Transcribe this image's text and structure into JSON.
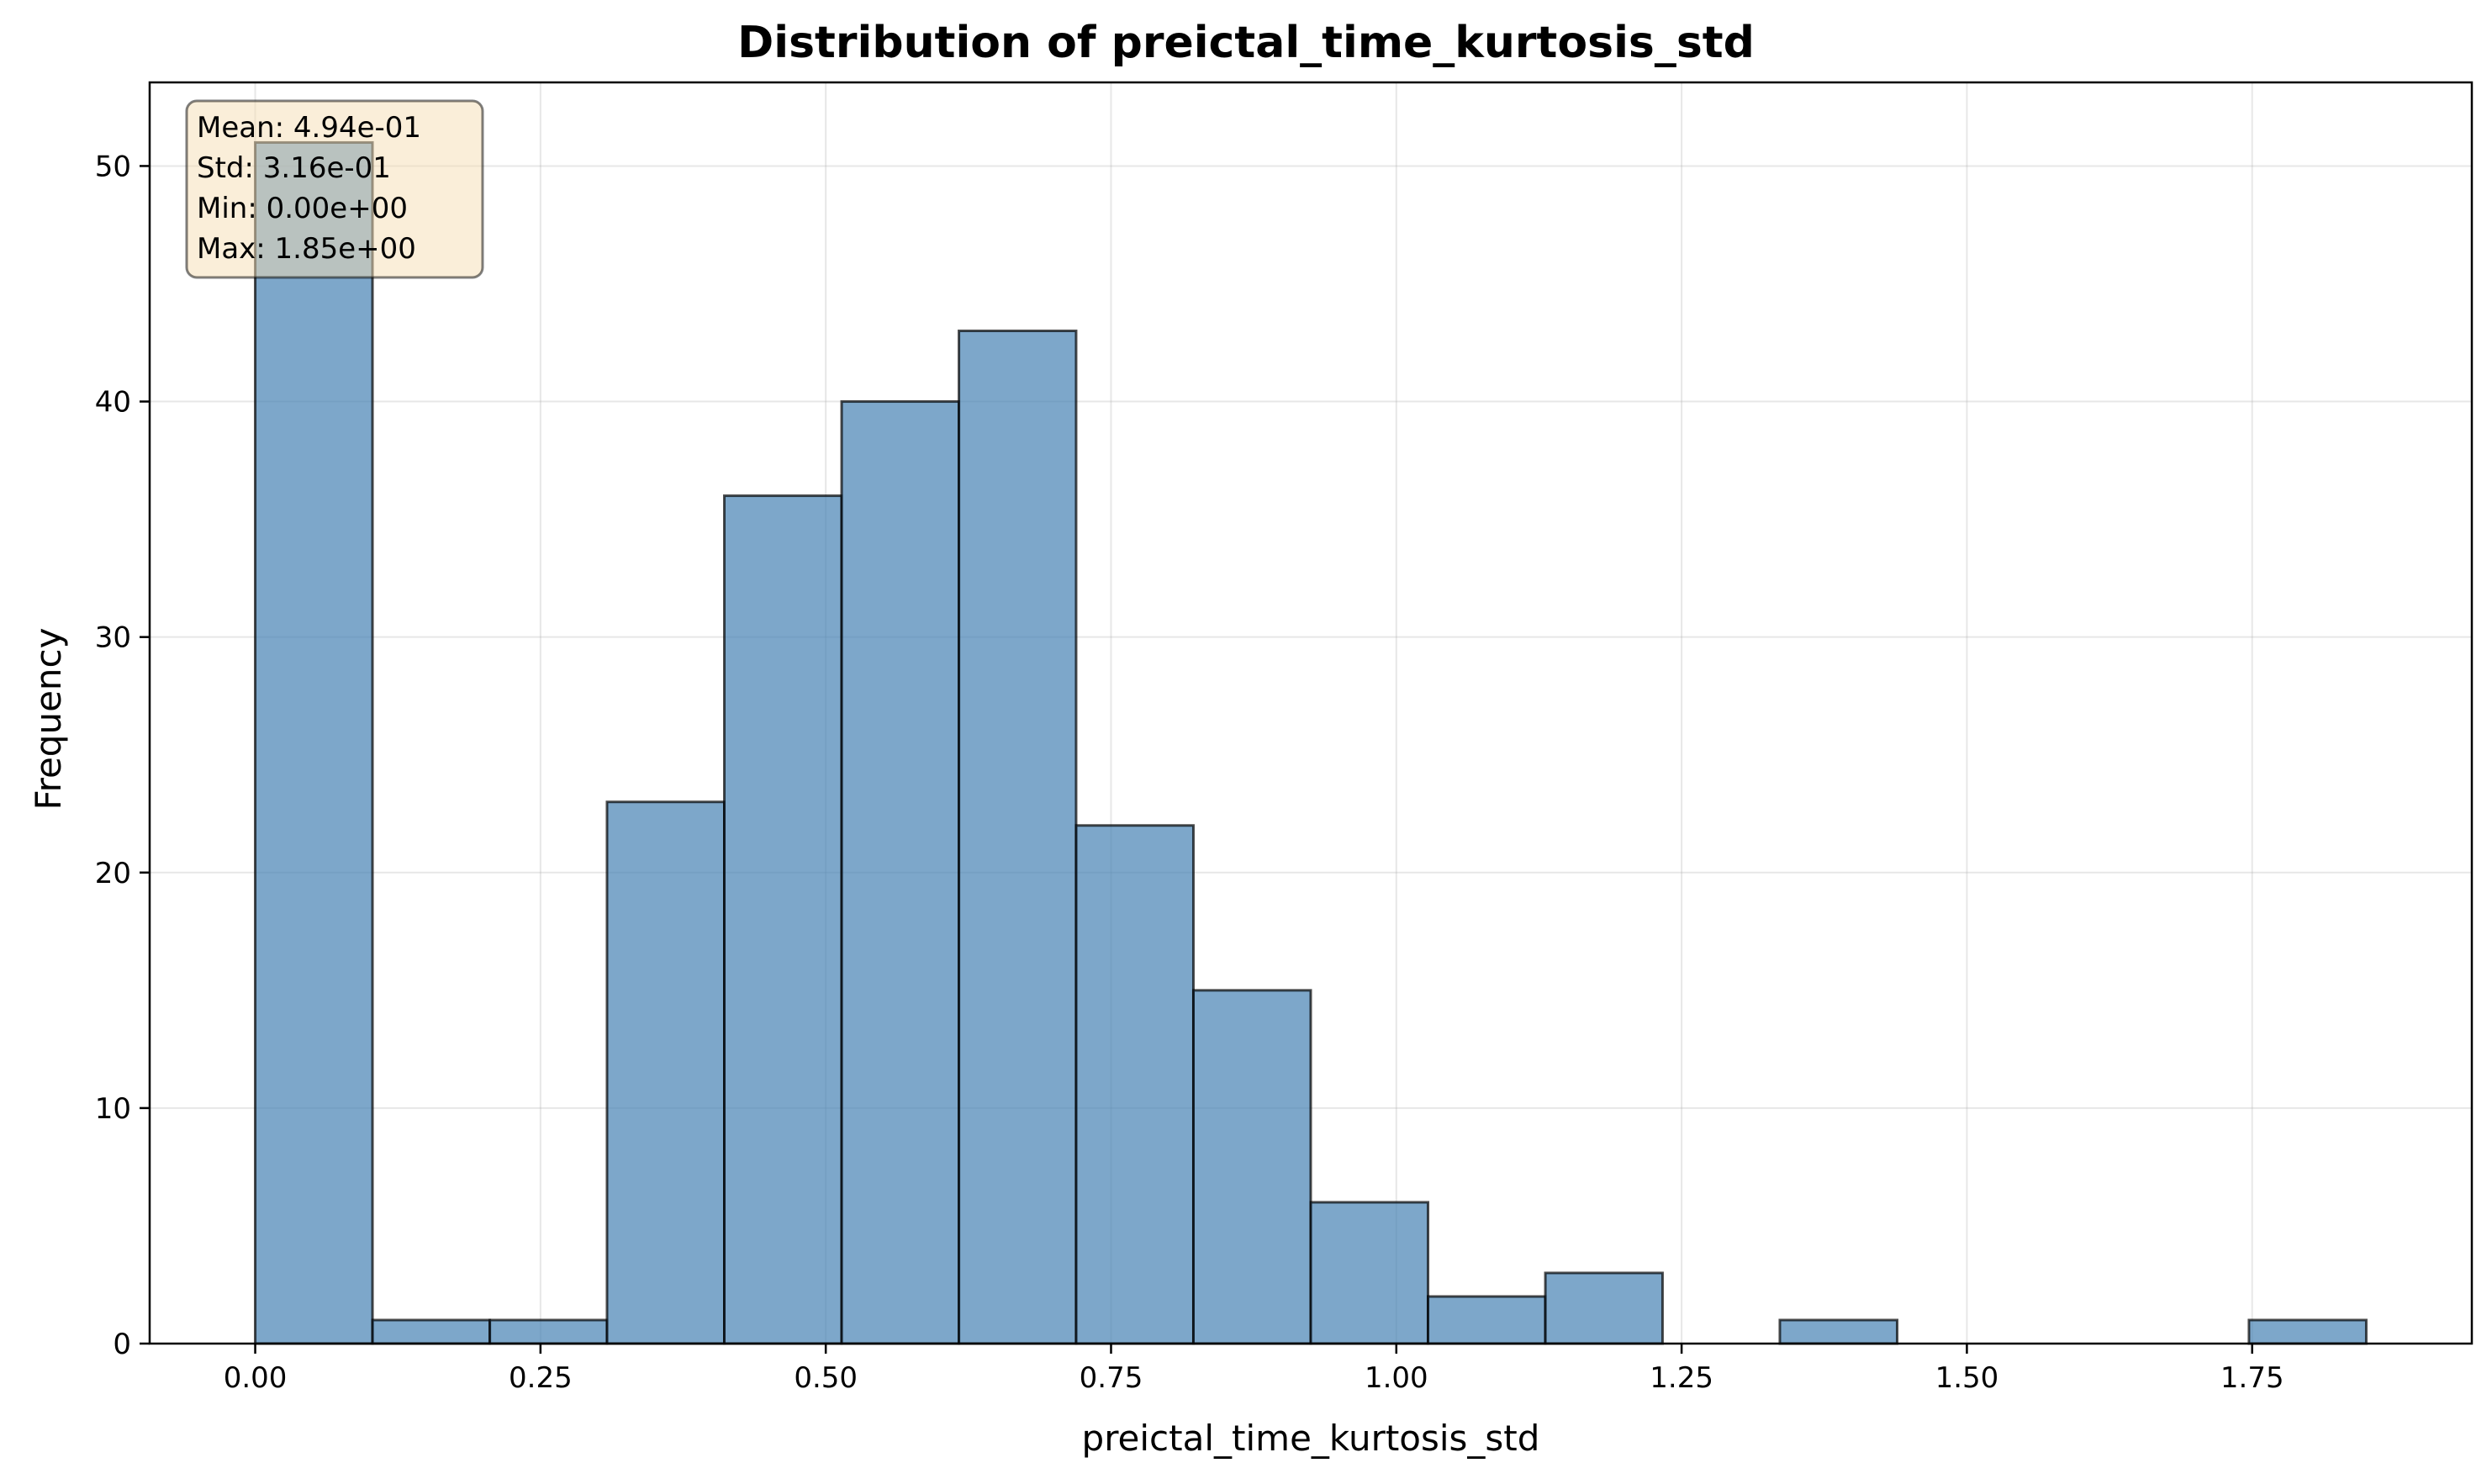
{
  "chart_data": {
    "type": "bar",
    "title": "Distribution of preictal_time_kurtosis_std",
    "xlabel": "preictal_time_kurtosis_std",
    "ylabel": "Frequency",
    "xlim": [
      -0.0925,
      1.9425
    ],
    "ylim": [
      0,
      53.55
    ],
    "x_ticks": [
      0.0,
      0.25,
      0.5,
      0.75,
      1.0,
      1.25,
      1.5,
      1.75
    ],
    "x_tick_labels": [
      "0.00",
      "0.25",
      "0.50",
      "0.75",
      "1.00",
      "1.25",
      "1.50",
      "1.75"
    ],
    "y_ticks": [
      0,
      10,
      20,
      30,
      40,
      50
    ],
    "y_tick_labels": [
      "0",
      "10",
      "20",
      "30",
      "40",
      "50"
    ],
    "grid": true,
    "bin_edges": [
      0.0,
      0.1028,
      0.2056,
      0.3083,
      0.4111,
      0.5139,
      0.6167,
      0.7194,
      0.8222,
      0.925,
      1.0278,
      1.1306,
      1.2333,
      1.3361,
      1.4389,
      1.5417,
      1.6444,
      1.7472,
      1.85
    ],
    "values": [
      51,
      1,
      1,
      23,
      36,
      40,
      43,
      22,
      15,
      6,
      2,
      3,
      0,
      1,
      0,
      0,
      0,
      1
    ],
    "bar_color": "#4682b4",
    "edge_color": "#000000",
    "stats_box": {
      "lines": [
        "Mean: 4.94e-01",
        "Std: 3.16e-01",
        "Min: 0.00e+00",
        "Max: 1.85e+00"
      ],
      "background": "#f5deb3"
    }
  }
}
